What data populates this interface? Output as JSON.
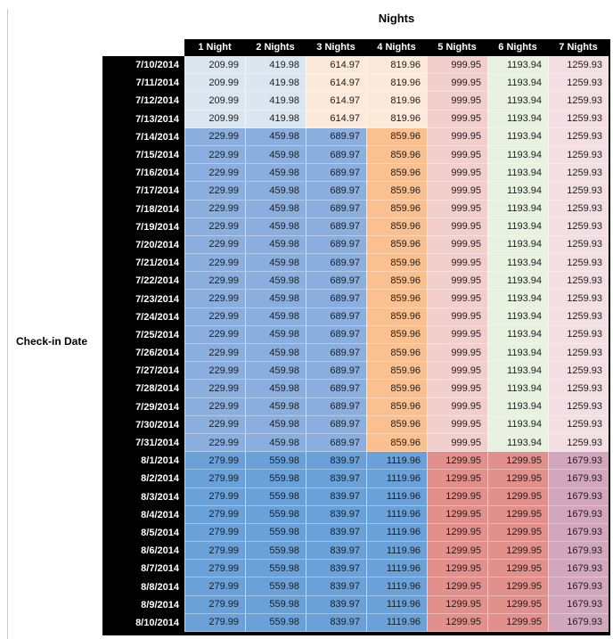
{
  "chart_data": {
    "type": "table",
    "title": "Nights",
    "row_axis_label": "Check-in Date",
    "columns": [
      "1 Night",
      "2 Nights",
      "3 Nights",
      "4 Nights",
      "5 Nights",
      "6 Nights",
      "7 Nights"
    ],
    "colors": {
      "headerBg": "#000000",
      "headerText": "#ffffff",
      "lightBlue": "#DCE6F1",
      "medBlue": "#8AAFDE",
      "lateBlue": "#69A1D8",
      "lightOrange": "#FDE9D9",
      "medOrange": "#FAC08F",
      "lightRed": "#F2CECC",
      "lateRed": "#E2908C",
      "lightGreen": "#E9F1E1",
      "lightPink": "#F2DEE3",
      "latePink": "#D2A7BD"
    },
    "palettes": {
      "early": [
        "lightBlue",
        "lightBlue",
        "lightOrange",
        "lightOrange",
        "lightRed",
        "lightGreen",
        "lightPink"
      ],
      "mid": [
        "medBlue",
        "medBlue",
        "medBlue",
        "medOrange",
        "lightRed",
        "lightGreen",
        "lightPink"
      ],
      "late": [
        "lateBlue",
        "lateBlue",
        "lateBlue",
        "lateBlue",
        "lateRed",
        "lateRed",
        "latePink"
      ]
    },
    "rows": [
      {
        "date": "7/10/2014",
        "period": "early",
        "values": [
          "209.99",
          "419.98",
          "614.97",
          "819.96",
          "999.95",
          "1193.94",
          "1259.93"
        ]
      },
      {
        "date": "7/11/2014",
        "period": "early",
        "values": [
          "209.99",
          "419.98",
          "614.97",
          "819.96",
          "999.95",
          "1193.94",
          "1259.93"
        ]
      },
      {
        "date": "7/12/2014",
        "period": "early",
        "values": [
          "209.99",
          "419.98",
          "614.97",
          "819.96",
          "999.95",
          "1193.94",
          "1259.93"
        ]
      },
      {
        "date": "7/13/2014",
        "period": "early",
        "values": [
          "209.99",
          "419.98",
          "614.97",
          "819.96",
          "999.95",
          "1193.94",
          "1259.93"
        ]
      },
      {
        "date": "7/14/2014",
        "period": "mid",
        "values": [
          "229.99",
          "459.98",
          "689.97",
          "859.96",
          "999.95",
          "1193.94",
          "1259.93"
        ]
      },
      {
        "date": "7/15/2014",
        "period": "mid",
        "values": [
          "229.99",
          "459.98",
          "689.97",
          "859.96",
          "999.95",
          "1193.94",
          "1259.93"
        ]
      },
      {
        "date": "7/16/2014",
        "period": "mid",
        "values": [
          "229.99",
          "459.98",
          "689.97",
          "859.96",
          "999.95",
          "1193.94",
          "1259.93"
        ]
      },
      {
        "date": "7/17/2014",
        "period": "mid",
        "values": [
          "229.99",
          "459.98",
          "689.97",
          "859.96",
          "999.95",
          "1193.94",
          "1259.93"
        ]
      },
      {
        "date": "7/18/2014",
        "period": "mid",
        "values": [
          "229.99",
          "459.98",
          "689.97",
          "859.96",
          "999.95",
          "1193.94",
          "1259.93"
        ]
      },
      {
        "date": "7/19/2014",
        "period": "mid",
        "values": [
          "229.99",
          "459.98",
          "689.97",
          "859.96",
          "999.95",
          "1193.94",
          "1259.93"
        ]
      },
      {
        "date": "7/20/2014",
        "period": "mid",
        "values": [
          "229.99",
          "459.98",
          "689.97",
          "859.96",
          "999.95",
          "1193.94",
          "1259.93"
        ]
      },
      {
        "date": "7/21/2014",
        "period": "mid",
        "values": [
          "229.99",
          "459.98",
          "689.97",
          "859.96",
          "999.95",
          "1193.94",
          "1259.93"
        ]
      },
      {
        "date": "7/22/2014",
        "period": "mid",
        "values": [
          "229.99",
          "459.98",
          "689.97",
          "859.96",
          "999.95",
          "1193.94",
          "1259.93"
        ]
      },
      {
        "date": "7/23/2014",
        "period": "mid",
        "values": [
          "229.99",
          "459.98",
          "689.97",
          "859.96",
          "999.95",
          "1193.94",
          "1259.93"
        ]
      },
      {
        "date": "7/24/2014",
        "period": "mid",
        "values": [
          "229.99",
          "459.98",
          "689.97",
          "859.96",
          "999.95",
          "1193.94",
          "1259.93"
        ]
      },
      {
        "date": "7/25/2014",
        "period": "mid",
        "values": [
          "229.99",
          "459.98",
          "689.97",
          "859.96",
          "999.95",
          "1193.94",
          "1259.93"
        ]
      },
      {
        "date": "7/26/2014",
        "period": "mid",
        "values": [
          "229.99",
          "459.98",
          "689.97",
          "859.96",
          "999.95",
          "1193.94",
          "1259.93"
        ]
      },
      {
        "date": "7/27/2014",
        "period": "mid",
        "values": [
          "229.99",
          "459.98",
          "689.97",
          "859.96",
          "999.95",
          "1193.94",
          "1259.93"
        ]
      },
      {
        "date": "7/28/2014",
        "period": "mid",
        "values": [
          "229.99",
          "459.98",
          "689.97",
          "859.96",
          "999.95",
          "1193.94",
          "1259.93"
        ]
      },
      {
        "date": "7/29/2014",
        "period": "mid",
        "values": [
          "229.99",
          "459.98",
          "689.97",
          "859.96",
          "999.95",
          "1193.94",
          "1259.93"
        ]
      },
      {
        "date": "7/30/2014",
        "period": "mid",
        "values": [
          "229.99",
          "459.98",
          "689.97",
          "859.96",
          "999.95",
          "1193.94",
          "1259.93"
        ]
      },
      {
        "date": "7/31/2014",
        "period": "mid",
        "values": [
          "229.99",
          "459.98",
          "689.97",
          "859.96",
          "999.95",
          "1193.94",
          "1259.93"
        ]
      },
      {
        "date": "8/1/2014",
        "period": "late",
        "values": [
          "279.99",
          "559.98",
          "839.97",
          "1119.96",
          "1299.95",
          "1299.95",
          "1679.93"
        ]
      },
      {
        "date": "8/2/2014",
        "period": "late",
        "values": [
          "279.99",
          "559.98",
          "839.97",
          "1119.96",
          "1299.95",
          "1299.95",
          "1679.93"
        ]
      },
      {
        "date": "8/3/2014",
        "period": "late",
        "values": [
          "279.99",
          "559.98",
          "839.97",
          "1119.96",
          "1299.95",
          "1299.95",
          "1679.93"
        ]
      },
      {
        "date": "8/4/2014",
        "period": "late",
        "values": [
          "279.99",
          "559.98",
          "839.97",
          "1119.96",
          "1299.95",
          "1299.95",
          "1679.93"
        ]
      },
      {
        "date": "8/5/2014",
        "period": "late",
        "values": [
          "279.99",
          "559.98",
          "839.97",
          "1119.96",
          "1299.95",
          "1299.95",
          "1679.93"
        ]
      },
      {
        "date": "8/6/2014",
        "period": "late",
        "values": [
          "279.99",
          "559.98",
          "839.97",
          "1119.96",
          "1299.95",
          "1299.95",
          "1679.93"
        ]
      },
      {
        "date": "8/7/2014",
        "period": "late",
        "values": [
          "279.99",
          "559.98",
          "839.97",
          "1119.96",
          "1299.95",
          "1299.95",
          "1679.93"
        ]
      },
      {
        "date": "8/8/2014",
        "period": "late",
        "values": [
          "279.99",
          "559.98",
          "839.97",
          "1119.96",
          "1299.95",
          "1299.95",
          "1679.93"
        ]
      },
      {
        "date": "8/9/2014",
        "period": "late",
        "values": [
          "279.99",
          "559.98",
          "839.97",
          "1119.96",
          "1299.95",
          "1299.95",
          "1679.93"
        ]
      },
      {
        "date": "8/10/2014",
        "period": "late",
        "values": [
          "279.99",
          "559.98",
          "839.97",
          "1119.96",
          "1299.95",
          "1299.95",
          "1679.93"
        ]
      }
    ]
  }
}
